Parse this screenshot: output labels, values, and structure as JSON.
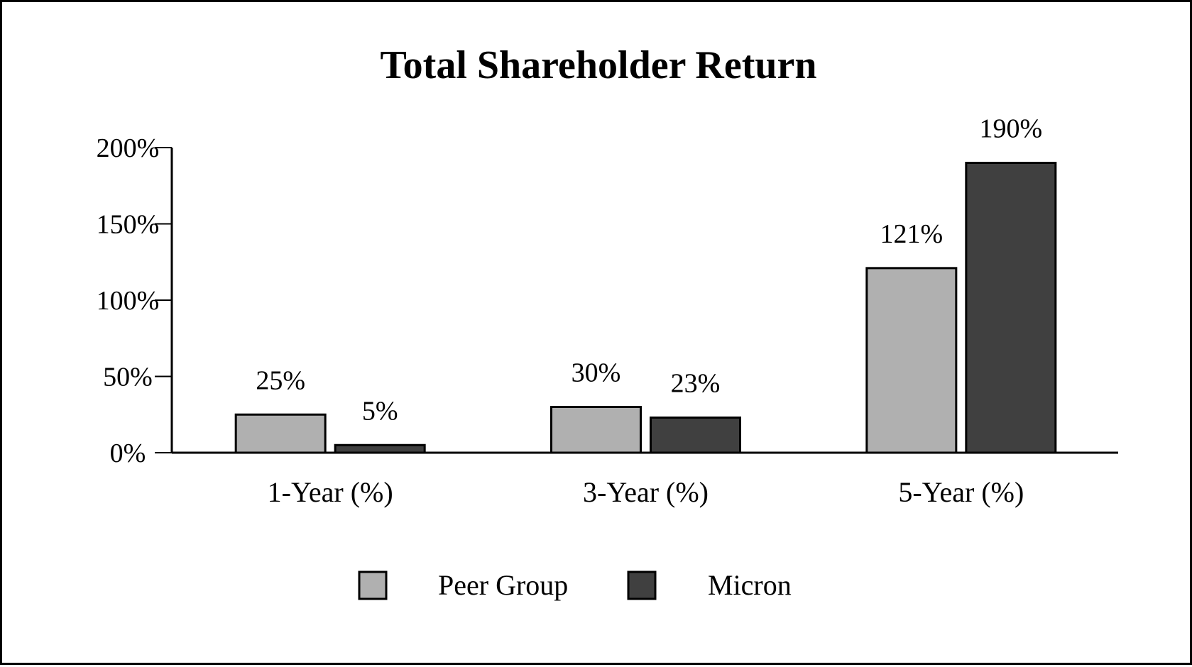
{
  "chart_data": {
    "type": "bar",
    "title": "Total Shareholder Return",
    "categories": [
      "1-Year (%)",
      "3-Year (%)",
      "5-Year (%)"
    ],
    "series": [
      {
        "name": "Peer Group",
        "values": [
          25,
          30,
          121
        ],
        "labels": [
          "25%",
          "30%",
          "121%"
        ],
        "color": "#b0b0b0"
      },
      {
        "name": "Micron",
        "values": [
          5,
          23,
          190
        ],
        "labels": [
          "5%",
          "23%",
          "190%"
        ],
        "color": "#404040"
      }
    ],
    "ylim": [
      0,
      200
    ],
    "yticks": [
      0,
      50,
      100,
      150,
      200
    ],
    "ytick_labels": [
      "0%",
      "50%",
      "100%",
      "150%",
      "200%"
    ],
    "xlabel": "",
    "ylabel": "",
    "grid": false,
    "legend_position": "bottom-center"
  }
}
